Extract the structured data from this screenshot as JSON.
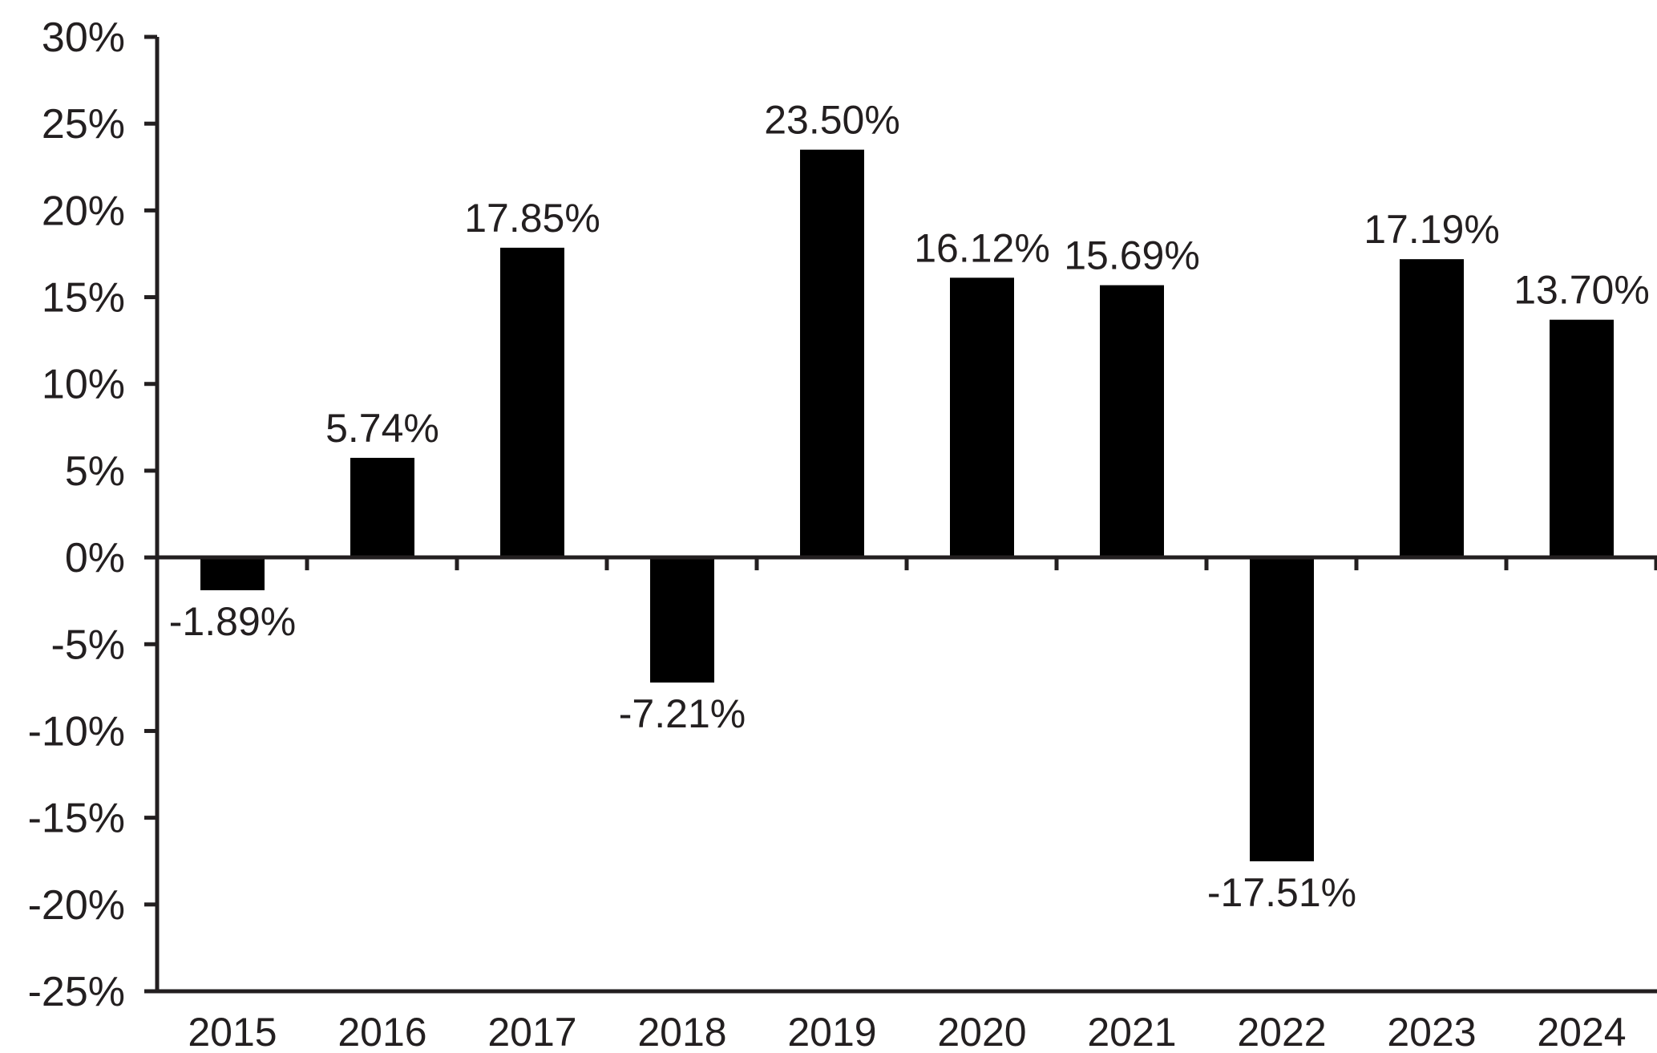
{
  "chart_data": {
    "type": "bar",
    "title": "",
    "xlabel": "",
    "ylabel": "",
    "categories": [
      "2015",
      "2016",
      "2017",
      "2018",
      "2019",
      "2020",
      "2021",
      "2022",
      "2023",
      "2024"
    ],
    "values": [
      -1.89,
      5.74,
      17.85,
      -7.21,
      23.5,
      16.12,
      15.69,
      -17.51,
      17.19,
      13.7
    ],
    "value_labels": [
      "-1.89%",
      "5.74%",
      "17.85%",
      "-7.21%",
      "23.50%",
      "16.12%",
      "15.69%",
      "-17.51%",
      "17.19%",
      "13.70%"
    ],
    "ylim": [
      -25,
      30
    ],
    "y_ticks": [
      30,
      25,
      20,
      15,
      10,
      5,
      0,
      -5,
      -10,
      -15,
      -20,
      -25
    ],
    "y_tick_labels": [
      "30%",
      "25%",
      "20%",
      "15%",
      "10%",
      "5%",
      "0%",
      "-5%",
      "-10%",
      "-15%",
      "-20%",
      "-25%"
    ],
    "grid": false,
    "legend": "none",
    "colors": {
      "bar": "#000000",
      "axis": "#231f20",
      "text": "#231f20",
      "background": "#ffffff"
    }
  }
}
